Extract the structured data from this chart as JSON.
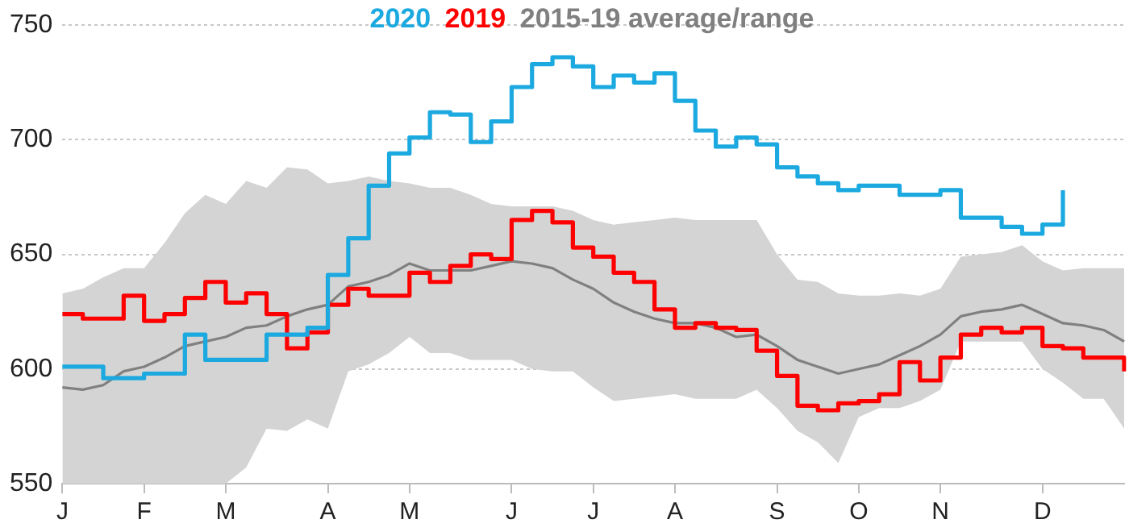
{
  "chart_data": {
    "type": "line",
    "legend": "top",
    "grid": "y",
    "marker": "none",
    "line_style": "solid",
    "categories": [
      "J",
      null,
      null,
      null,
      "F",
      null,
      null,
      null,
      "M",
      null,
      null,
      null,
      null,
      "A",
      null,
      null,
      null,
      "M",
      null,
      null,
      null,
      null,
      "J",
      null,
      null,
      null,
      "J",
      null,
      null,
      null,
      "A",
      null,
      null,
      null,
      null,
      "S",
      null,
      null,
      null,
      "O",
      null,
      null,
      null,
      "N",
      null,
      null,
      null,
      null,
      "D",
      null,
      null,
      null,
      null
    ],
    "ylim": [
      550,
      750
    ],
    "yticks": [
      550,
      600,
      650,
      700,
      750
    ],
    "series": [
      {
        "name": "2020",
        "type": "step",
        "color": "#1ba9e0",
        "values": [
          601,
          601,
          596,
          596,
          598,
          598,
          615,
          604,
          604,
          604,
          615,
          615,
          618,
          641,
          657,
          680,
          694,
          701,
          712,
          711,
          699,
          708,
          723,
          733,
          736,
          732,
          723,
          728,
          725,
          729,
          717,
          704,
          697,
          701,
          698,
          688,
          684,
          681,
          678,
          680,
          680,
          676,
          676,
          678,
          666,
          666,
          662,
          659,
          663,
          678,
          null,
          null,
          null
        ]
      },
      {
        "name": "2019",
        "type": "step",
        "color": "#ff0000",
        "values": [
          624,
          622,
          622,
          632,
          621,
          624,
          631,
          638,
          629,
          633,
          624,
          609,
          616,
          628,
          635,
          632,
          632,
          642,
          638,
          645,
          650,
          648,
          665,
          669,
          664,
          653,
          649,
          642,
          638,
          626,
          618,
          620,
          618,
          617,
          608,
          597,
          584,
          582,
          585,
          586,
          589,
          603,
          595,
          605,
          615,
          618,
          616,
          618,
          610,
          609,
          605,
          605,
          599
        ]
      },
      {
        "name": "2015-19 average/range",
        "type": "line",
        "color": "#808080",
        "values": [
          592,
          591,
          593,
          599,
          601,
          605,
          610,
          612,
          614,
          618,
          619,
          623,
          626,
          628,
          636,
          638,
          641,
          646,
          643,
          643,
          643,
          645,
          647,
          646,
          644,
          639,
          635,
          629,
          625,
          622,
          620,
          620,
          618,
          614,
          615,
          610,
          604,
          601,
          598,
          600,
          602,
          606,
          610,
          615,
          623,
          625,
          626,
          628,
          624,
          620,
          619,
          617,
          612
        ],
        "lower": [
          550,
          550,
          550,
          550,
          550,
          550,
          550,
          550,
          550,
          557,
          574,
          573,
          578,
          574,
          599,
          602,
          607,
          614,
          607,
          607,
          604,
          604,
          604,
          600,
          599,
          599,
          592,
          586,
          587,
          588,
          589,
          587,
          587,
          587,
          591,
          583,
          573,
          568,
          559,
          579,
          583,
          583,
          586,
          591,
          612,
          612,
          612,
          612,
          600,
          594,
          587,
          587,
          574
        ],
        "upper": [
          633,
          635,
          640,
          644,
          644,
          655,
          668,
          676,
          672,
          682,
          679,
          688,
          687,
          681,
          682,
          684,
          682,
          681,
          679,
          679,
          676,
          672,
          671,
          671,
          671,
          669,
          665,
          663,
          664,
          665,
          666,
          665,
          665,
          665,
          665,
          650,
          639,
          638,
          633,
          632,
          632,
          633,
          632,
          635,
          649,
          650,
          651,
          654,
          647,
          643,
          644,
          644,
          644
        ]
      }
    ]
  }
}
